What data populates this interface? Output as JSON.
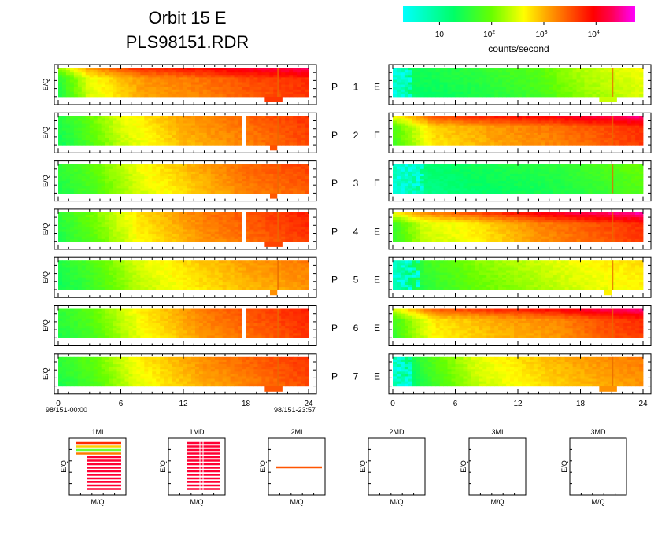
{
  "header": {
    "title": "Orbit 15 E",
    "subtitle": "PLS98151.RDR"
  },
  "colorbar": {
    "label": "counts/second",
    "ticks": [
      {
        "exp": 1,
        "text": "10",
        "sup": ""
      },
      {
        "exp": 2,
        "text": "10",
        "sup": "2"
      },
      {
        "exp": 3,
        "text": "10",
        "sup": "3"
      },
      {
        "exp": 4,
        "text": "10",
        "sup": "4"
      }
    ],
    "range_log10": [
      0.3,
      4.75
    ],
    "stops": [
      {
        "at": 0.0,
        "color": "#00ffff"
      },
      {
        "at": 0.22,
        "color": "#00ff66"
      },
      {
        "at": 0.38,
        "color": "#66ff00"
      },
      {
        "at": 0.52,
        "color": "#ffff00"
      },
      {
        "at": 0.62,
        "color": "#ffa500"
      },
      {
        "at": 0.82,
        "color": "#ff0000"
      },
      {
        "at": 0.9,
        "color": "#ff0055"
      },
      {
        "at": 1.0,
        "color": "#ff00ff"
      }
    ]
  },
  "chart_data": {
    "type": "heatmap",
    "x_ticks": [
      0,
      6,
      12,
      18,
      24
    ],
    "xlim": [
      0,
      24
    ],
    "ylabel": "E/Q",
    "left_time_start": "98/151-00:00",
    "left_time_end": "98/151-23:57",
    "rows": [
      {
        "label": "P",
        "num": "1",
        "side": "E",
        "left": {
          "profile": [
            [
              0,
              1.6
            ],
            [
              3,
              2.6
            ],
            [
              8,
              3.2
            ],
            [
              14,
              3.4
            ],
            [
              18,
              3.6
            ],
            [
              24,
              3.8
            ]
          ],
          "top_band": 0.5,
          "notch": [
            19.8,
            21.5
          ]
        },
        "right": {
          "profile": [
            [
              0,
              0.4
            ],
            [
              2,
              1.4
            ],
            [
              8,
              1.6
            ],
            [
              14,
              1.9
            ],
            [
              18,
              2.3
            ],
            [
              24,
              2.6
            ]
          ],
          "sparse_until": 2.0,
          "notch": [
            19.8,
            21.5
          ]
        }
      },
      {
        "label": "P",
        "num": "2",
        "side": "E",
        "left": {
          "profile": [
            [
              0,
              1.5
            ],
            [
              2,
              1.8
            ],
            [
              6,
              2.5
            ],
            [
              12,
              3.1
            ],
            [
              18,
              3.4
            ],
            [
              24,
              3.7
            ]
          ],
          "gap_at": 17.7,
          "notch": [
            20.3,
            21.0
          ]
        },
        "right": {
          "profile": [
            [
              0,
              1.9
            ],
            [
              4,
              2.9
            ],
            [
              10,
              3.2
            ],
            [
              16,
              3.4
            ],
            [
              20,
              3.6
            ],
            [
              24,
              3.8
            ]
          ],
          "top_band": 0.6
        }
      },
      {
        "label": "P",
        "num": "3",
        "side": "E",
        "left": {
          "profile": [
            [
              0,
              1.6
            ],
            [
              3,
              1.9
            ],
            [
              8,
              2.6
            ],
            [
              14,
              3.1
            ],
            [
              18,
              3.4
            ],
            [
              24,
              3.6
            ]
          ],
          "notch": [
            20.3,
            21.0
          ]
        },
        "right": {
          "profile": [
            [
              0,
              0.5
            ],
            [
              3,
              1.2
            ],
            [
              8,
              1.4
            ],
            [
              16,
              1.6
            ],
            [
              20,
              1.8
            ],
            [
              24,
              2.0
            ]
          ],
          "sparse_until": 3.0
        }
      },
      {
        "label": "P",
        "num": "4",
        "side": "E",
        "left": {
          "profile": [
            [
              0,
              1.6
            ],
            [
              3,
              2.0
            ],
            [
              8,
              2.8
            ],
            [
              14,
              3.3
            ],
            [
              18,
              3.5
            ],
            [
              24,
              3.8
            ]
          ],
          "gap_at": 17.7,
          "notch": [
            19.8,
            21.5
          ]
        },
        "right": {
          "profile": [
            [
              0,
              1.8
            ],
            [
              3,
              2.5
            ],
            [
              8,
              2.8
            ],
            [
              14,
              3.3
            ],
            [
              18,
              3.5
            ],
            [
              24,
              3.8
            ]
          ],
          "top_band": 0.7
        }
      },
      {
        "label": "P",
        "num": "5",
        "side": "E",
        "left": {
          "profile": [
            [
              0,
              1.5
            ],
            [
              3,
              1.8
            ],
            [
              8,
              2.5
            ],
            [
              14,
              2.9
            ],
            [
              18,
              3.1
            ],
            [
              24,
              3.3
            ]
          ],
          "notch": [
            20.3,
            21.0
          ]
        },
        "right": {
          "profile": [
            [
              0,
              0.7
            ],
            [
              3,
              1.7
            ],
            [
              8,
              2.1
            ],
            [
              14,
              2.4
            ],
            [
              18,
              2.6
            ],
            [
              24,
              2.8
            ]
          ],
          "sparse_until": 2.5,
          "notch": [
            20.3,
            21.0
          ]
        }
      },
      {
        "label": "P",
        "num": "6",
        "side": "E",
        "left": {
          "profile": [
            [
              0,
              1.6
            ],
            [
              3,
              1.9
            ],
            [
              8,
              2.7
            ],
            [
              14,
              3.3
            ],
            [
              18,
              3.5
            ],
            [
              24,
              3.8
            ]
          ],
          "gap_at": 17.7
        },
        "right": {
          "profile": [
            [
              0,
              1.8
            ],
            [
              4,
              2.8
            ],
            [
              10,
              3.1
            ],
            [
              16,
              3.3
            ],
            [
              20,
              3.6
            ],
            [
              24,
              3.8
            ]
          ],
          "top_band": 0.6
        }
      },
      {
        "label": "P",
        "num": "7",
        "side": "E",
        "left": {
          "profile": [
            [
              0,
              1.6
            ],
            [
              3,
              1.9
            ],
            [
              8,
              2.7
            ],
            [
              14,
              3.2
            ],
            [
              18,
              3.4
            ],
            [
              24,
              3.7
            ]
          ],
          "notch": [
            19.8,
            21.5
          ]
        },
        "right": {
          "profile": [
            [
              0,
              0.8
            ],
            [
              3,
              1.7
            ],
            [
              8,
              2.5
            ],
            [
              14,
              2.9
            ],
            [
              18,
              3.1
            ],
            [
              24,
              3.3
            ]
          ],
          "sparse_until": 2.0,
          "notch": [
            19.8,
            21.5
          ]
        }
      }
    ],
    "mass_panels": [
      {
        "title": "1MI",
        "xlabel": "M/Q",
        "ylabel": "E/Q"
      },
      {
        "title": "1MD",
        "xlabel": "M/Q",
        "ylabel": "E/Q"
      },
      {
        "title": "2MI",
        "xlabel": "M/Q",
        "ylabel": "E/Q"
      },
      {
        "title": "2MD",
        "xlabel": "M/Q",
        "ylabel": "E/Q"
      },
      {
        "title": "3MI",
        "xlabel": "M/Q",
        "ylabel": "E/Q"
      },
      {
        "title": "3MD",
        "xlabel": "M/Q",
        "ylabel": "E/Q"
      }
    ]
  }
}
